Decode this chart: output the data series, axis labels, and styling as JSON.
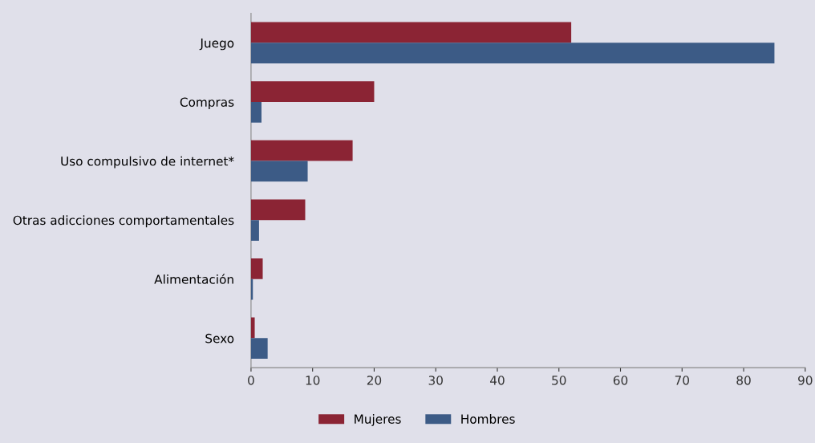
{
  "chart_data": {
    "type": "bar",
    "orientation": "horizontal",
    "categories": [
      "Juego",
      "Compras",
      "Uso compulsivo de internet*",
      "Otras adicciones comportamentales",
      "Alimentación",
      "Sexo"
    ],
    "series": [
      {
        "name": "Mujeres",
        "color": "#8b2434",
        "values": [
          52,
          20,
          16.5,
          8.8,
          1.9,
          0.6
        ]
      },
      {
        "name": "Hombres",
        "color": "#3c5b86",
        "values": [
          85,
          1.7,
          9.2,
          1.3,
          0.3,
          2.7
        ]
      }
    ],
    "xlim": [
      0,
      90
    ],
    "xticks": [
      0,
      10,
      20,
      30,
      40,
      50,
      60,
      70,
      80,
      90
    ],
    "grid": false,
    "legend": "bottom"
  }
}
